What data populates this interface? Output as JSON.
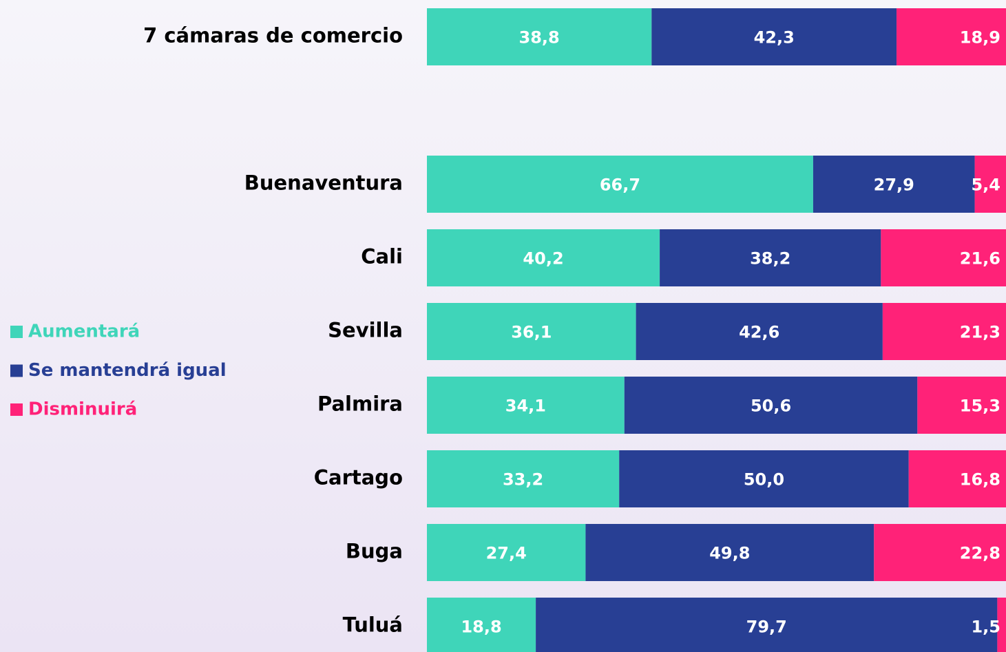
{
  "chart_data": {
    "type": "stacked-bar-horizontal",
    "categories": [
      "7 cámaras de comercio",
      "Buenaventura",
      "Cali",
      "Sevilla",
      "Palmira",
      "Cartago",
      "Buga",
      "Tuluá"
    ],
    "series": [
      {
        "name": "Aumentará",
        "color": "#3fd5b9",
        "values": [
          38.8,
          66.7,
          40.2,
          36.1,
          34.1,
          33.2,
          27.4,
          18.8
        ],
        "value_labels": [
          "38,8",
          "66,7",
          "40,2",
          "36,1",
          "34,1",
          "33,2",
          "27,4",
          "18,8"
        ]
      },
      {
        "name": "Se mantendrá igual",
        "color": "#283f94",
        "values": [
          42.3,
          27.9,
          38.2,
          42.6,
          50.6,
          50.0,
          49.8,
          79.7
        ],
        "value_labels": [
          "42,3",
          "27,9",
          "38,2",
          "42,6",
          "50,6",
          "50,0",
          "49,8",
          "79,7"
        ]
      },
      {
        "name": "Disminuirá",
        "color": "#ff2278",
        "values": [
          18.9,
          5.4,
          21.6,
          21.3,
          15.3,
          16.8,
          22.8,
          1.5
        ],
        "value_labels": [
          "18,9",
          "5,4",
          "21,6",
          "21,3",
          "15,3",
          "16,8",
          "22,8",
          "1,5"
        ]
      }
    ]
  }
}
